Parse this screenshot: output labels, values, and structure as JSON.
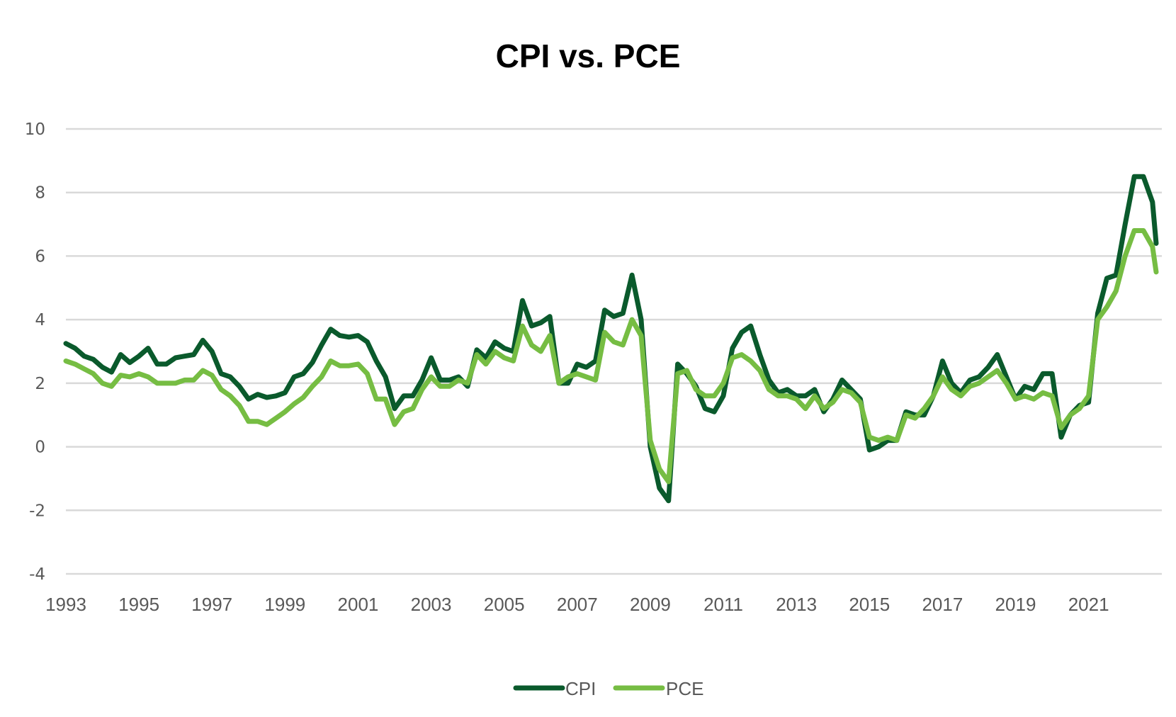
{
  "chart_data": {
    "type": "line",
    "title": "CPI vs. PCE",
    "xlabel": "",
    "ylabel": "",
    "ylim": [
      -4,
      10
    ],
    "yticks": [
      "10",
      "8",
      "6",
      "4",
      "2",
      "0",
      "-2",
      "-4"
    ],
    "xlim": [
      1993.0,
      2022.85
    ],
    "xticks": [
      "1993",
      "1995",
      "1997",
      "1999",
      "2001",
      "2003",
      "2005",
      "2007",
      "2009",
      "2011",
      "2013",
      "2015",
      "2017",
      "2019",
      "2021"
    ],
    "grid": true,
    "legend_position": "bottom",
    "colors": {
      "CPI": "#0a5a2c",
      "PCE": "#76bd43",
      "grid": "#d9d9d9",
      "text": "#595959"
    },
    "x": [
      1993.0,
      1993.25,
      1993.5,
      1993.75,
      1994.0,
      1994.25,
      1994.5,
      1994.75,
      1995.0,
      1995.25,
      1995.5,
      1995.75,
      1996.0,
      1996.25,
      1996.5,
      1996.75,
      1997.0,
      1997.25,
      1997.5,
      1997.75,
      1998.0,
      1998.25,
      1998.5,
      1998.75,
      1999.0,
      1999.25,
      1999.5,
      1999.75,
      2000.0,
      2000.25,
      2000.5,
      2000.75,
      2001.0,
      2001.25,
      2001.5,
      2001.75,
      2002.0,
      2002.25,
      2002.5,
      2002.75,
      2003.0,
      2003.25,
      2003.5,
      2003.75,
      2004.0,
      2004.25,
      2004.5,
      2004.75,
      2005.0,
      2005.25,
      2005.5,
      2005.75,
      2006.0,
      2006.25,
      2006.5,
      2006.75,
      2007.0,
      2007.25,
      2007.5,
      2007.75,
      2008.0,
      2008.25,
      2008.5,
      2008.75,
      2009.0,
      2009.25,
      2009.5,
      2009.75,
      2010.0,
      2010.25,
      2010.5,
      2010.75,
      2011.0,
      2011.25,
      2011.5,
      2011.75,
      2012.0,
      2012.25,
      2012.5,
      2012.75,
      2013.0,
      2013.25,
      2013.5,
      2013.75,
      2014.0,
      2014.25,
      2014.5,
      2014.75,
      2015.0,
      2015.25,
      2015.5,
      2015.75,
      2016.0,
      2016.25,
      2016.5,
      2016.75,
      2017.0,
      2017.25,
      2017.5,
      2017.75,
      2018.0,
      2018.25,
      2018.5,
      2018.75,
      2019.0,
      2019.25,
      2019.5,
      2019.75,
      2020.0,
      2020.25,
      2020.5,
      2020.75,
      2021.0,
      2021.25,
      2021.5,
      2021.75,
      2022.0,
      2022.25,
      2022.5,
      2022.75,
      2022.85
    ],
    "series": [
      {
        "name": "CPI",
        "values": [
          3.25,
          3.1,
          2.85,
          2.75,
          2.5,
          2.35,
          2.9,
          2.65,
          2.85,
          3.1,
          2.6,
          2.6,
          2.8,
          2.85,
          2.9,
          3.35,
          3.0,
          2.3,
          2.2,
          1.9,
          1.5,
          1.65,
          1.55,
          1.6,
          1.7,
          2.2,
          2.3,
          2.65,
          3.2,
          3.7,
          3.5,
          3.45,
          3.5,
          3.3,
          2.7,
          2.2,
          1.2,
          1.6,
          1.6,
          2.1,
          2.8,
          2.1,
          2.1,
          2.2,
          1.9,
          3.05,
          2.8,
          3.3,
          3.1,
          3.0,
          4.6,
          3.8,
          3.9,
          4.1,
          2.0,
          2.0,
          2.6,
          2.5,
          2.7,
          4.3,
          4.1,
          4.2,
          5.4,
          4.0,
          0.0,
          -1.3,
          -1.7,
          2.6,
          2.3,
          1.9,
          1.2,
          1.1,
          1.6,
          3.1,
          3.6,
          3.8,
          2.9,
          2.1,
          1.7,
          1.8,
          1.6,
          1.6,
          1.8,
          1.1,
          1.5,
          2.1,
          1.8,
          1.5,
          -0.1,
          0.0,
          0.2,
          0.2,
          1.1,
          1.0,
          1.0,
          1.6,
          2.7,
          2.0,
          1.7,
          2.1,
          2.2,
          2.5,
          2.9,
          2.2,
          1.5,
          1.9,
          1.8,
          2.3,
          2.3,
          0.3,
          1.0,
          1.3,
          1.4,
          4.2,
          5.3,
          5.4,
          7.0,
          8.5,
          8.5,
          7.7,
          6.4
        ]
      },
      {
        "name": "PCE",
        "values": [
          2.7,
          2.6,
          2.45,
          2.3,
          2.0,
          1.9,
          2.25,
          2.2,
          2.3,
          2.2,
          2.0,
          2.0,
          2.0,
          2.1,
          2.1,
          2.4,
          2.25,
          1.8,
          1.6,
          1.3,
          0.8,
          0.8,
          0.7,
          0.9,
          1.1,
          1.35,
          1.55,
          1.9,
          2.2,
          2.7,
          2.55,
          2.55,
          2.6,
          2.3,
          1.5,
          1.5,
          0.7,
          1.1,
          1.2,
          1.8,
          2.2,
          1.9,
          1.9,
          2.1,
          2.0,
          2.9,
          2.6,
          3.0,
          2.8,
          2.7,
          3.8,
          3.2,
          3.0,
          3.5,
          2.0,
          2.2,
          2.3,
          2.2,
          2.1,
          3.6,
          3.3,
          3.2,
          4.0,
          3.5,
          0.2,
          -0.7,
          -1.1,
          2.3,
          2.4,
          1.8,
          1.6,
          1.6,
          2.0,
          2.8,
          2.9,
          2.7,
          2.4,
          1.8,
          1.6,
          1.6,
          1.5,
          1.2,
          1.6,
          1.2,
          1.4,
          1.8,
          1.7,
          1.4,
          0.3,
          0.2,
          0.3,
          0.2,
          1.0,
          0.9,
          1.2,
          1.6,
          2.2,
          1.8,
          1.6,
          1.9,
          2.0,
          2.2,
          2.4,
          2.0,
          1.5,
          1.6,
          1.5,
          1.7,
          1.6,
          0.6,
          1.0,
          1.2,
          1.6,
          4.0,
          4.4,
          4.9,
          6.0,
          6.8,
          6.8,
          6.3,
          5.5
        ]
      }
    ]
  }
}
